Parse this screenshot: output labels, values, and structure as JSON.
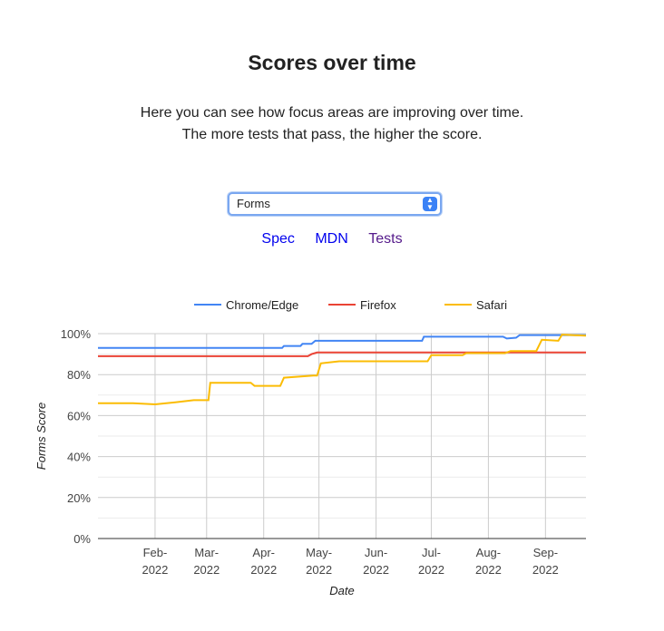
{
  "heading": "Scores over time",
  "description": "Here you can see how focus areas are improving over time. The more tests that pass, the higher the score.",
  "select": {
    "value": "Forms"
  },
  "links": [
    {
      "label": "Spec",
      "visited": false
    },
    {
      "label": "MDN",
      "visited": false
    },
    {
      "label": "Tests",
      "visited": true
    }
  ],
  "chart_data": {
    "type": "line",
    "xlabel": "Date",
    "ylabel": "Forms Score",
    "ylim": [
      0,
      100
    ],
    "xlim": [
      "2022-01-01",
      "2022-09-23"
    ],
    "yticks": [
      "0%",
      "20%",
      "40%",
      "60%",
      "80%",
      "100%"
    ],
    "xticks": [
      {
        "date": "2022-02-01",
        "label": [
          "Feb-",
          "2022"
        ]
      },
      {
        "date": "2022-03-01",
        "label": [
          "Mar-",
          "2022"
        ]
      },
      {
        "date": "2022-04-01",
        "label": [
          "Apr-",
          "2022"
        ]
      },
      {
        "date": "2022-05-01",
        "label": [
          "May-",
          "2022"
        ]
      },
      {
        "date": "2022-06-01",
        "label": [
          "Jun-",
          "2022"
        ]
      },
      {
        "date": "2022-07-01",
        "label": [
          "Jul-",
          "2022"
        ]
      },
      {
        "date": "2022-08-01",
        "label": [
          "Aug-",
          "2022"
        ]
      },
      {
        "date": "2022-09-01",
        "label": [
          "Sep-",
          "2022"
        ]
      }
    ],
    "grid": true,
    "legend_position": "top",
    "series": [
      {
        "name": "Chrome/Edge",
        "color": "#4285F4",
        "points": [
          [
            "2022-01-01",
            93
          ],
          [
            "2022-04-11",
            93
          ],
          [
            "2022-04-12",
            94
          ],
          [
            "2022-04-21",
            94
          ],
          [
            "2022-04-22",
            95
          ],
          [
            "2022-04-27",
            95
          ],
          [
            "2022-04-29",
            96.5
          ],
          [
            "2022-06-26",
            96.5
          ],
          [
            "2022-06-27",
            98.5
          ],
          [
            "2022-08-09",
            98.5
          ],
          [
            "2022-08-11",
            97.6
          ],
          [
            "2022-08-16",
            98
          ],
          [
            "2022-08-18",
            99.3
          ],
          [
            "2022-09-23",
            99.3
          ]
        ]
      },
      {
        "name": "Firefox",
        "color": "#EA4335",
        "points": [
          [
            "2022-01-01",
            89
          ],
          [
            "2022-04-25",
            89
          ],
          [
            "2022-04-27",
            90
          ],
          [
            "2022-04-30",
            90.8
          ],
          [
            "2022-09-23",
            90.8
          ]
        ]
      },
      {
        "name": "Safari",
        "color": "#FBBC04",
        "points": [
          [
            "2022-01-01",
            66
          ],
          [
            "2022-01-20",
            66
          ],
          [
            "2022-02-01",
            65.5
          ],
          [
            "2022-02-12",
            66.5
          ],
          [
            "2022-02-22",
            67.5
          ],
          [
            "2022-03-02",
            67.5
          ],
          [
            "2022-03-03",
            76
          ],
          [
            "2022-03-25",
            76
          ],
          [
            "2022-03-27",
            74.5
          ],
          [
            "2022-04-10",
            74.5
          ],
          [
            "2022-04-12",
            78.5
          ],
          [
            "2022-04-28",
            79.5
          ],
          [
            "2022-04-30",
            79.5
          ],
          [
            "2022-05-02",
            85.5
          ],
          [
            "2022-05-12",
            86.5
          ],
          [
            "2022-06-29",
            86.5
          ],
          [
            "2022-07-01",
            89.5
          ],
          [
            "2022-07-18",
            89.5
          ],
          [
            "2022-07-20",
            90.5
          ],
          [
            "2022-08-10",
            90.5
          ],
          [
            "2022-08-13",
            91.5
          ],
          [
            "2022-08-27",
            91.5
          ],
          [
            "2022-08-30",
            97
          ],
          [
            "2022-09-08",
            96.5
          ],
          [
            "2022-09-10",
            99.5
          ],
          [
            "2022-09-23",
            99
          ]
        ]
      }
    ]
  }
}
